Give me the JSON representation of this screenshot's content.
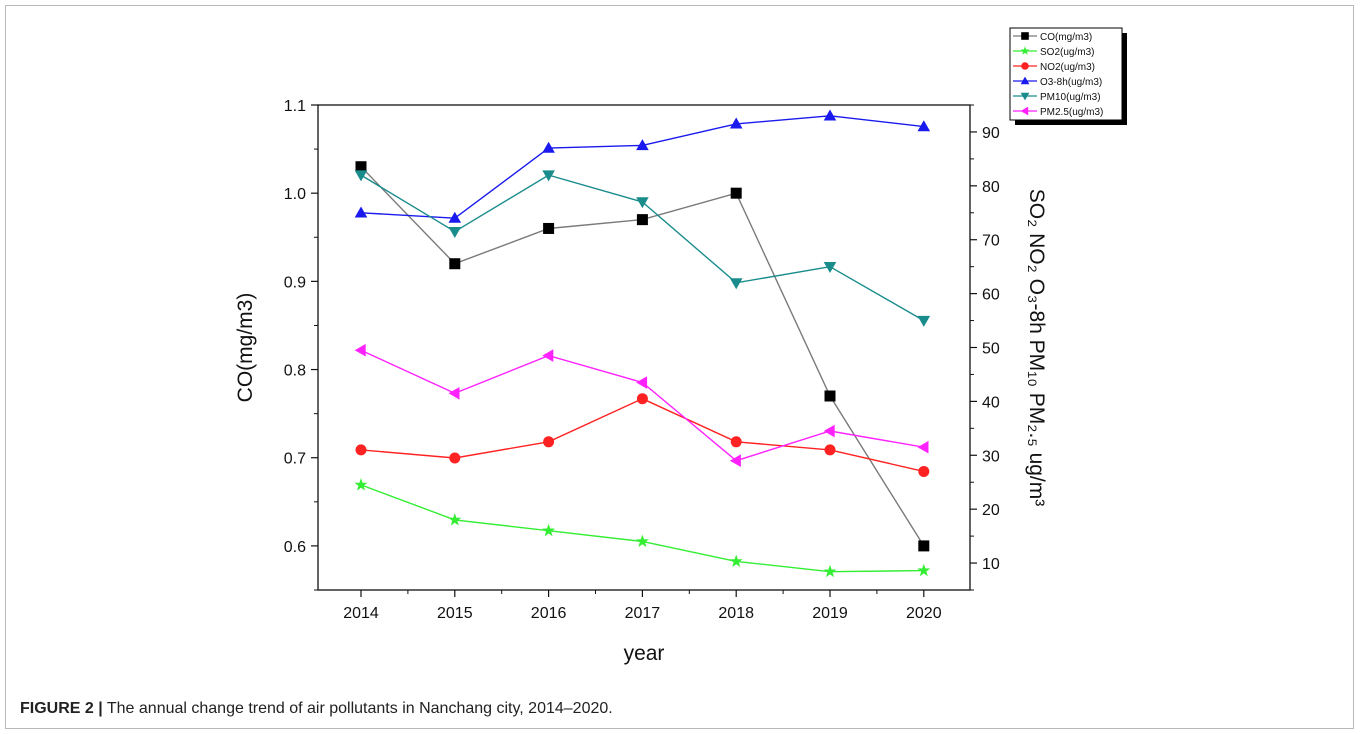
{
  "caption": {
    "label": "FIGURE 2 |",
    "text": "The annual change trend of air pollutants in Nanchang city, 2014–2020."
  },
  "chart_data": {
    "type": "line",
    "xlabel": "year",
    "ylabel_left": "CO(mg/m3)",
    "ylabel_right": "SO₂ NO₂ O₃-8h PM₁₀ PM₂.₅ ug/m³",
    "categories": [
      "2014",
      "2015",
      "2016",
      "2017",
      "2018",
      "2019",
      "2020"
    ],
    "ylim_left": [
      0.55,
      1.1
    ],
    "yticks_left": [
      "0.6",
      "0.7",
      "0.8",
      "0.9",
      "1.0",
      "1.1"
    ],
    "ylim_right": [
      5,
      95
    ],
    "yticks_right": [
      "10",
      "20",
      "30",
      "40",
      "50",
      "60",
      "70",
      "80",
      "90"
    ],
    "legend_position": "top-right, outside plot",
    "grid": false,
    "series": [
      {
        "name": "CO(mg/m3)",
        "axis": "left",
        "color": "#000000",
        "line_color": "#7a7a7a",
        "marker": "square",
        "values": [
          1.03,
          0.92,
          0.96,
          0.97,
          1.0,
          0.77,
          0.6
        ]
      },
      {
        "name": "SO2(ug/m3)",
        "axis": "right",
        "color": "#33ee33",
        "line_color": "#33ee33",
        "marker": "star",
        "values": [
          24.5,
          18,
          16,
          14,
          10.3,
          8.4,
          8.6
        ]
      },
      {
        "name": "NO2(ug/m3)",
        "axis": "right",
        "color": "#ff2222",
        "line_color": "#ff2222",
        "marker": "circle",
        "values": [
          31,
          29.5,
          32.5,
          40.5,
          32.5,
          31,
          27
        ]
      },
      {
        "name": "O3-8h(ug/m3)",
        "axis": "right",
        "color": "#1a1aee",
        "line_color": "#1a1aee",
        "marker": "triangle-up",
        "values": [
          75,
          74,
          87,
          87.5,
          91.5,
          93,
          91
        ]
      },
      {
        "name": "PM10(ug/m3)",
        "axis": "right",
        "color": "#1a8c8c",
        "line_color": "#1a8c8c",
        "marker": "triangle-down",
        "values": [
          82,
          71.5,
          82,
          77,
          62,
          65,
          55
        ]
      },
      {
        "name": "PM2.5(ug/m3)",
        "axis": "right",
        "color": "#ff22ff",
        "line_color": "#ff22ff",
        "marker": "triangle-left",
        "values": [
          49.5,
          41.5,
          48.5,
          43.5,
          29,
          34.5,
          31.5
        ]
      }
    ]
  }
}
